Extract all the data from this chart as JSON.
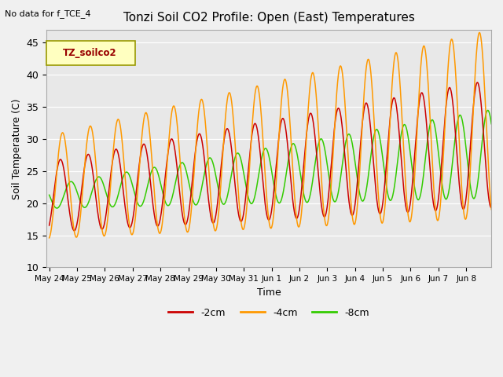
{
  "title": "Tonzi Soil CO2 Profile: Open (East) Temperatures",
  "subtitle": "No data for f_TCE_4",
  "xlabel": "Time",
  "ylabel": "Soil Temperature (C)",
  "ylim": [
    10,
    47
  ],
  "yticks": [
    10,
    15,
    20,
    25,
    30,
    35,
    40,
    45
  ],
  "legend_station": "TZ_soilco2",
  "series_labels": [
    "-2cm",
    "-4cm",
    "-8cm"
  ],
  "series_colors": [
    "#cc0000",
    "#ff9900",
    "#33cc00"
  ],
  "tick_dates": [
    "May 24",
    "May 25",
    "May 26",
    "May 27",
    "May 28",
    "May 29",
    "May 30",
    "May 31",
    "Jun 1",
    "Jun 2",
    "Jun 3",
    "Jun 4",
    "Jun 5",
    "Jun 6",
    "Jun 7",
    "Jun 8"
  ],
  "num_days": 16,
  "pts_per_day": 96,
  "fig_bg": "#f0f0f0",
  "plot_bg": "#e8e8e8",
  "grid_color": "#ffffff",
  "title_fontsize": 11,
  "axis_fontsize": 9,
  "tick_fontsize": 7.5
}
